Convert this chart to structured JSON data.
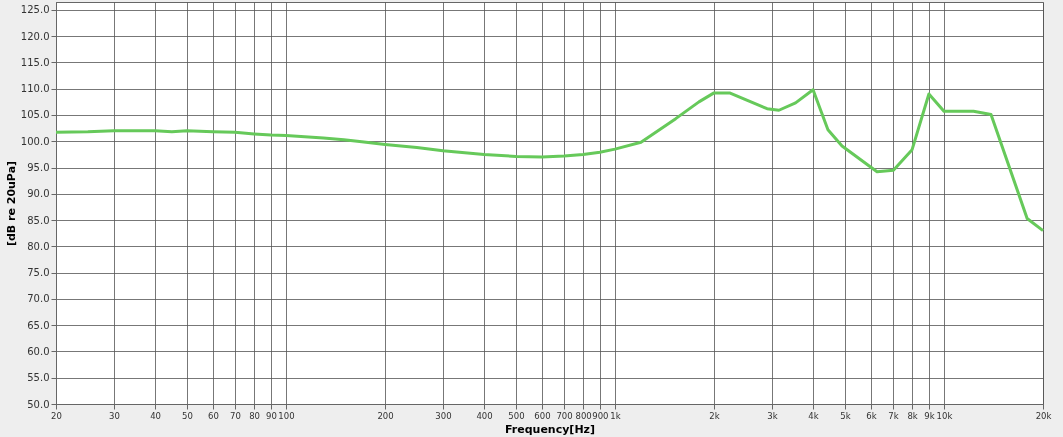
{
  "chart_data": {
    "type": "line",
    "xlabel": "Frequency[Hz]",
    "ylabel": "[dB re 20uPa]",
    "log": "x",
    "grid": true,
    "marker": "none",
    "line_style": "solid",
    "xlim": [
      20,
      20000
    ],
    "ylim": [
      50,
      126.5
    ],
    "xticks": [
      20,
      30,
      40,
      50,
      60,
      70,
      80,
      90,
      100,
      200,
      300,
      400,
      500,
      600,
      700,
      800,
      900,
      {
        "value": 1000,
        "label": "1k"
      },
      {
        "value": 2000,
        "label": "2k"
      },
      {
        "value": 3000,
        "label": "3k"
      },
      {
        "value": 4000,
        "label": "4k"
      },
      {
        "value": 5000,
        "label": "5k"
      },
      {
        "value": 6000,
        "label": "6k"
      },
      {
        "value": 7000,
        "label": "7k"
      },
      {
        "value": 8000,
        "label": "8k"
      },
      {
        "value": 9000,
        "label": "9k"
      },
      {
        "value": 10000,
        "label": "10k"
      },
      {
        "value": 20000,
        "label": "20k"
      }
    ],
    "yticks": [
      {
        "value": 50,
        "label": "50.0"
      },
      {
        "value": 55,
        "label": "55.0"
      },
      {
        "value": 60,
        "label": "60.0"
      },
      {
        "value": 65,
        "label": "65.0"
      },
      {
        "value": 70,
        "label": "70.0"
      },
      {
        "value": 75,
        "label": "75.0"
      },
      {
        "value": 80,
        "label": "80.0"
      },
      {
        "value": 85,
        "label": "85.0"
      },
      {
        "value": 90,
        "label": "90.0"
      },
      {
        "value": 95,
        "label": "95.0"
      },
      {
        "value": 100,
        "label": "100.0"
      },
      {
        "value": 105,
        "label": "105.0"
      },
      {
        "value": 110,
        "label": "110.0"
      },
      {
        "value": 115,
        "label": "115.0"
      },
      {
        "value": 120,
        "label": "120.0"
      },
      {
        "value": 125,
        "label": "125.0"
      }
    ],
    "series": [
      {
        "color": "#66c95a",
        "x": [
          20,
          25,
          30,
          40,
          45,
          50,
          60,
          70,
          80,
          90,
          100,
          130,
          150,
          170,
          200,
          250,
          300,
          400,
          500,
          600,
          700,
          800,
          900,
          1000,
          1200,
          1530,
          1800,
          2000,
          2230,
          2900,
          3150,
          3540,
          4000,
          4440,
          4900,
          6260,
          7020,
          8000,
          9000,
          10000,
          12300,
          13900,
          17900,
          20000
        ],
        "values": [
          101.7,
          101.8,
          102,
          102,
          101.8,
          102,
          101.8,
          101.7,
          101.4,
          101.2,
          101.1,
          100.6,
          100.3,
          99.9,
          99.4,
          98.8,
          98.2,
          97.5,
          97.1,
          97.0,
          97.2,
          97.5,
          97.9,
          98.5,
          99.8,
          104.3,
          107.5,
          109.2,
          109.2,
          106.2,
          105.9,
          107.3,
          109.8,
          102.2,
          99.1,
          94.2,
          94.5,
          98.4,
          109,
          105.7,
          105.7,
          105.1,
          85.3,
          83.0
        ]
      }
    ]
  }
}
